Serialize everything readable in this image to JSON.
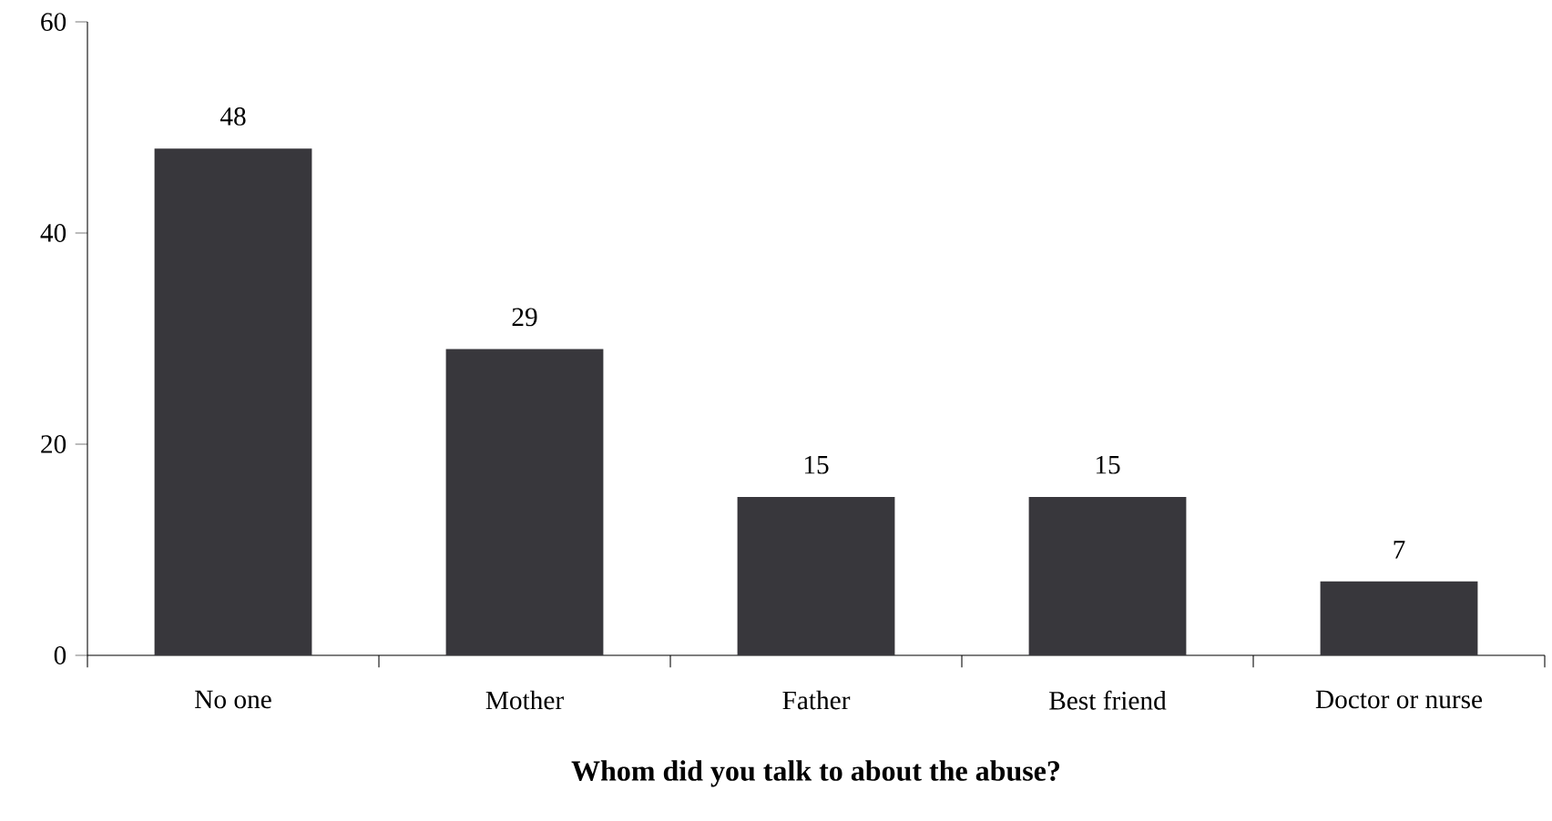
{
  "chart_data": {
    "type": "bar",
    "xlabel": "Whom did you talk to about the abuse?",
    "categories": [
      "No one",
      "Mother",
      "Father",
      "Best friend",
      "Doctor or nurse"
    ],
    "values": [
      48,
      29,
      15,
      15,
      7
    ],
    "color": "#38373c",
    "ylim": [
      0,
      60
    ],
    "yticks": [
      0,
      20,
      40,
      60
    ],
    "data_labels": true,
    "grid": false
  }
}
